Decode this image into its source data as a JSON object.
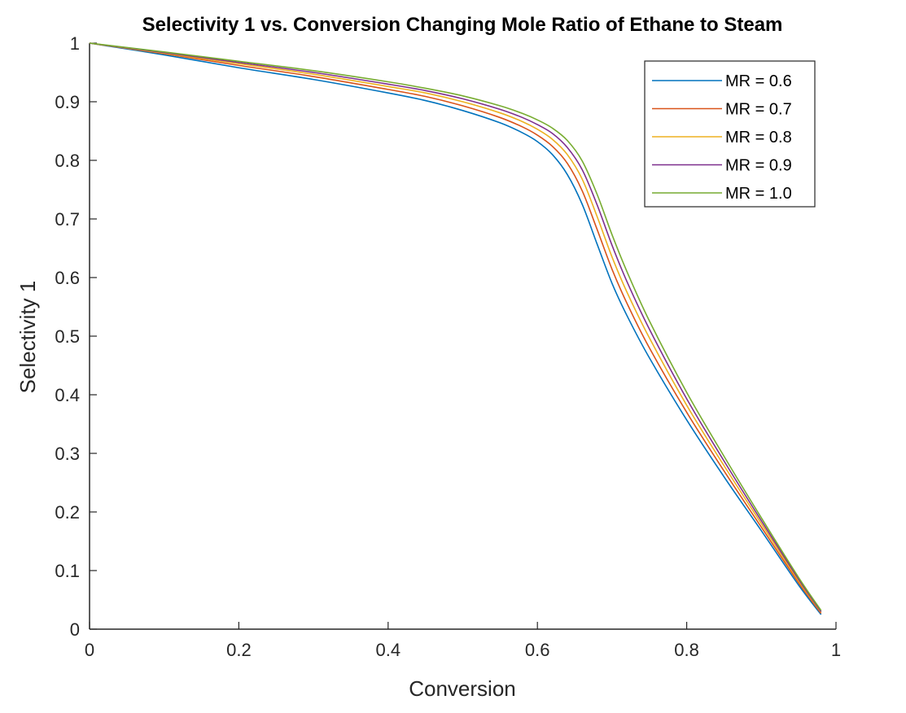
{
  "chart_data": {
    "type": "line",
    "title": "Selectivity 1 vs. Conversion Changing Mole Ratio of Ethane to Steam",
    "xlabel": "Conversion",
    "ylabel": "Selectivity 1",
    "xlim": [
      0,
      1
    ],
    "ylim": [
      0,
      1
    ],
    "xticks": [
      "0",
      "0.2",
      "0.4",
      "0.6",
      "0.8",
      "1"
    ],
    "yticks": [
      "0",
      "0.1",
      "0.2",
      "0.3",
      "0.4",
      "0.5",
      "0.6",
      "0.7",
      "0.8",
      "0.9",
      "1"
    ],
    "grid": false,
    "legend_position": "top-right",
    "series": [
      {
        "name": "MR = 0.6",
        "color": "#0072BD",
        "x": [
          0,
          0.1,
          0.2,
          0.3,
          0.4,
          0.45,
          0.5,
          0.55,
          0.58,
          0.6,
          0.62,
          0.64,
          0.66,
          0.68,
          0.7,
          0.72,
          0.75,
          0.8,
          0.85,
          0.9,
          0.95,
          0.98
        ],
        "y": [
          1.0,
          0.98,
          0.958,
          0.938,
          0.915,
          0.902,
          0.885,
          0.864,
          0.847,
          0.832,
          0.81,
          0.776,
          0.725,
          0.657,
          0.59,
          0.535,
          0.463,
          0.357,
          0.26,
          0.168,
          0.075,
          0.025
        ]
      },
      {
        "name": "MR = 0.7",
        "color": "#D95319",
        "x": [
          0,
          0.1,
          0.2,
          0.3,
          0.4,
          0.45,
          0.5,
          0.55,
          0.58,
          0.6,
          0.62,
          0.64,
          0.66,
          0.68,
          0.7,
          0.72,
          0.75,
          0.8,
          0.85,
          0.9,
          0.95,
          0.98
        ],
        "y": [
          1.0,
          0.982,
          0.962,
          0.943,
          0.921,
          0.909,
          0.893,
          0.873,
          0.857,
          0.843,
          0.824,
          0.795,
          0.748,
          0.682,
          0.614,
          0.556,
          0.48,
          0.37,
          0.27,
          0.174,
          0.079,
          0.027
        ]
      },
      {
        "name": "MR = 0.8",
        "color": "#EDB120",
        "x": [
          0,
          0.1,
          0.2,
          0.3,
          0.4,
          0.45,
          0.5,
          0.55,
          0.58,
          0.6,
          0.62,
          0.64,
          0.66,
          0.68,
          0.7,
          0.72,
          0.75,
          0.8,
          0.85,
          0.9,
          0.95,
          0.98
        ],
        "y": [
          1.0,
          0.983,
          0.965,
          0.947,
          0.926,
          0.915,
          0.9,
          0.881,
          0.866,
          0.853,
          0.836,
          0.81,
          0.768,
          0.704,
          0.635,
          0.575,
          0.497,
          0.382,
          0.279,
          0.18,
          0.082,
          0.029
        ]
      },
      {
        "name": "MR = 0.9",
        "color": "#7E2F8E",
        "x": [
          0,
          0.1,
          0.2,
          0.3,
          0.4,
          0.45,
          0.5,
          0.55,
          0.58,
          0.6,
          0.62,
          0.64,
          0.66,
          0.68,
          0.7,
          0.72,
          0.75,
          0.8,
          0.85,
          0.9,
          0.95,
          0.98
        ],
        "y": [
          1.0,
          0.984,
          0.967,
          0.95,
          0.93,
          0.919,
          0.905,
          0.887,
          0.873,
          0.861,
          0.846,
          0.822,
          0.784,
          0.724,
          0.655,
          0.593,
          0.512,
          0.393,
          0.287,
          0.185,
          0.085,
          0.03
        ]
      },
      {
        "name": "MR = 1.0",
        "color": "#77AC30",
        "x": [
          0,
          0.1,
          0.2,
          0.3,
          0.4,
          0.45,
          0.5,
          0.55,
          0.58,
          0.6,
          0.62,
          0.64,
          0.66,
          0.68,
          0.7,
          0.72,
          0.75,
          0.8,
          0.85,
          0.9,
          0.95,
          0.98
        ],
        "y": [
          1.0,
          0.985,
          0.969,
          0.953,
          0.934,
          0.923,
          0.91,
          0.893,
          0.88,
          0.869,
          0.855,
          0.834,
          0.799,
          0.742,
          0.673,
          0.61,
          0.526,
          0.404,
          0.295,
          0.19,
          0.088,
          0.032
        ]
      }
    ]
  }
}
